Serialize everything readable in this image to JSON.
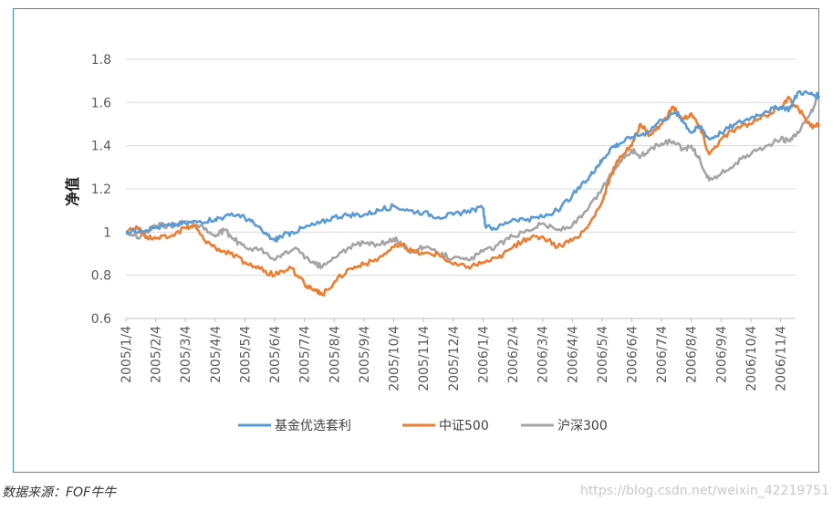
{
  "chart_data": {
    "type": "line",
    "ylabel": "净值",
    "ylim": [
      0.6,
      1.8
    ],
    "yticks": [
      "0.6",
      "0.8",
      "1",
      "1.2",
      "1.4",
      "1.6",
      "1.8"
    ],
    "grid": "horizontal",
    "legend_position": "bottom",
    "x_ticks": [
      "2005/1/4",
      "2005/2/4",
      "2005/3/4",
      "2005/4/4",
      "2005/5/4",
      "2005/6/4",
      "2005/7/4",
      "2005/8/4",
      "2005/9/4",
      "2005/10/4",
      "2005/11/4",
      "2005/12/4",
      "2006/1/4",
      "2006/2/4",
      "2006/3/4",
      "2006/4/4",
      "2006/5/4",
      "2006/6/4",
      "2006/7/4",
      "2006/8/4",
      "2006/9/4",
      "2006/10/4",
      "2006/11/4"
    ],
    "series": [
      {
        "name": "基金优选套利",
        "color": "#5b9bd5",
        "points": [
          [
            0,
            1.0
          ],
          [
            0.5,
            1.01
          ],
          [
            1,
            1.02
          ],
          [
            1.5,
            1.03
          ],
          [
            2,
            1.04
          ],
          [
            2.5,
            1.05
          ],
          [
            3,
            1.06
          ],
          [
            3.3,
            1.07
          ],
          [
            3.8,
            1.08
          ],
          [
            4.2,
            1.05
          ],
          [
            4.6,
            1.0
          ],
          [
            5.0,
            0.96
          ],
          [
            5.2,
            0.98
          ],
          [
            5.6,
            1.0
          ],
          [
            6.0,
            1.02
          ],
          [
            6.5,
            1.04
          ],
          [
            7.0,
            1.07
          ],
          [
            7.5,
            1.08
          ],
          [
            8,
            1.08
          ],
          [
            8.5,
            1.1
          ],
          [
            9,
            1.12
          ],
          [
            9.5,
            1.1
          ],
          [
            10,
            1.09
          ],
          [
            10.5,
            1.07
          ],
          [
            11,
            1.08
          ],
          [
            11.5,
            1.1
          ],
          [
            12,
            1.11
          ],
          [
            12.1,
            1.02
          ],
          [
            12.5,
            1.02
          ],
          [
            13,
            1.06
          ],
          [
            13.5,
            1.06
          ],
          [
            14,
            1.07
          ],
          [
            14.5,
            1.1
          ],
          [
            15,
            1.17
          ],
          [
            15.5,
            1.24
          ],
          [
            15.8,
            1.3
          ],
          [
            16,
            1.33
          ],
          [
            16.3,
            1.39
          ],
          [
            16.6,
            1.41
          ],
          [
            17,
            1.44
          ],
          [
            17.5,
            1.46
          ],
          [
            18,
            1.52
          ],
          [
            18.5,
            1.55
          ],
          [
            18.7,
            1.52
          ],
          [
            19,
            1.46
          ],
          [
            19.3,
            1.49
          ],
          [
            19.6,
            1.43
          ],
          [
            20,
            1.46
          ],
          [
            20.5,
            1.5
          ],
          [
            21,
            1.53
          ],
          [
            21.5,
            1.56
          ],
          [
            22,
            1.58
          ],
          [
            22.3,
            1.57
          ],
          [
            22.6,
            1.65
          ],
          [
            23.0,
            1.64
          ],
          [
            23.3,
            1.63
          ]
        ]
      },
      {
        "name": "中证500",
        "color": "#ed7d31",
        "points": [
          [
            0,
            1.0
          ],
          [
            0.4,
            1.02
          ],
          [
            0.7,
            0.98
          ],
          [
            1,
            0.97
          ],
          [
            1.5,
            0.98
          ],
          [
            2,
            1.02
          ],
          [
            2.3,
            1.03
          ],
          [
            2.6,
            0.97
          ],
          [
            3,
            0.93
          ],
          [
            3.5,
            0.9
          ],
          [
            4,
            0.86
          ],
          [
            4.5,
            0.83
          ],
          [
            5,
            0.8
          ],
          [
            5.5,
            0.84
          ],
          [
            6,
            0.76
          ],
          [
            6.3,
            0.73
          ],
          [
            6.6,
            0.71
          ],
          [
            7,
            0.77
          ],
          [
            7.5,
            0.83
          ],
          [
            8,
            0.85
          ],
          [
            8.5,
            0.88
          ],
          [
            9,
            0.93
          ],
          [
            9.3,
            0.94
          ],
          [
            9.6,
            0.91
          ],
          [
            10,
            0.9
          ],
          [
            10.5,
            0.9
          ],
          [
            11,
            0.85
          ],
          [
            11.5,
            0.84
          ],
          [
            12,
            0.86
          ],
          [
            12.5,
            0.88
          ],
          [
            13,
            0.93
          ],
          [
            13.5,
            0.97
          ],
          [
            14,
            0.98
          ],
          [
            14.5,
            0.93
          ],
          [
            15,
            0.96
          ],
          [
            15.5,
            1.02
          ],
          [
            16,
            1.14
          ],
          [
            16.3,
            1.26
          ],
          [
            16.6,
            1.35
          ],
          [
            17,
            1.4
          ],
          [
            17.3,
            1.5
          ],
          [
            17.6,
            1.45
          ],
          [
            18,
            1.5
          ],
          [
            18.4,
            1.58
          ],
          [
            18.7,
            1.52
          ],
          [
            19,
            1.55
          ],
          [
            19.3,
            1.48
          ],
          [
            19.6,
            1.36
          ],
          [
            20,
            1.43
          ],
          [
            20.5,
            1.48
          ],
          [
            21,
            1.5
          ],
          [
            21.5,
            1.54
          ],
          [
            22,
            1.58
          ],
          [
            22.3,
            1.62
          ],
          [
            22.6,
            1.57
          ],
          [
            23.0,
            1.49
          ],
          [
            23.3,
            1.5
          ]
        ]
      },
      {
        "name": "沪深300",
        "color": "#a5a5a5",
        "points": [
          [
            0,
            0.99
          ],
          [
            0.5,
            0.98
          ],
          [
            1,
            1.03
          ],
          [
            1.5,
            1.03
          ],
          [
            2,
            1.05
          ],
          [
            2.5,
            1.03
          ],
          [
            3,
            0.98
          ],
          [
            3.3,
            1.01
          ],
          [
            3.6,
            0.97
          ],
          [
            4,
            0.93
          ],
          [
            4.5,
            0.92
          ],
          [
            5,
            0.87
          ],
          [
            5.4,
            0.91
          ],
          [
            5.8,
            0.92
          ],
          [
            6.2,
            0.86
          ],
          [
            6.6,
            0.84
          ],
          [
            7,
            0.88
          ],
          [
            7.5,
            0.93
          ],
          [
            8,
            0.95
          ],
          [
            8.5,
            0.94
          ],
          [
            9,
            0.97
          ],
          [
            9.3,
            0.94
          ],
          [
            9.6,
            0.91
          ],
          [
            10,
            0.93
          ],
          [
            10.5,
            0.9
          ],
          [
            11,
            0.88
          ],
          [
            11.5,
            0.87
          ],
          [
            12,
            0.91
          ],
          [
            12.5,
            0.94
          ],
          [
            13,
            0.98
          ],
          [
            13.5,
            1.01
          ],
          [
            14,
            1.04
          ],
          [
            14.5,
            1.01
          ],
          [
            15,
            1.03
          ],
          [
            15.5,
            1.1
          ],
          [
            16,
            1.2
          ],
          [
            16.3,
            1.27
          ],
          [
            16.6,
            1.33
          ],
          [
            17,
            1.38
          ],
          [
            17.3,
            1.35
          ],
          [
            17.6,
            1.38
          ],
          [
            18,
            1.41
          ],
          [
            18.4,
            1.42
          ],
          [
            18.7,
            1.38
          ],
          [
            19,
            1.4
          ],
          [
            19.3,
            1.33
          ],
          [
            19.6,
            1.24
          ],
          [
            20,
            1.27
          ],
          [
            20.5,
            1.32
          ],
          [
            21,
            1.36
          ],
          [
            21.5,
            1.4
          ],
          [
            22,
            1.43
          ],
          [
            22.3,
            1.42
          ],
          [
            22.6,
            1.46
          ],
          [
            23.0,
            1.55
          ],
          [
            23.3,
            1.63
          ]
        ]
      }
    ]
  },
  "footer": {
    "source_note": "数据来源：FOF牛牛",
    "watermark": "https://blog.csdn.net/weixin_42219751"
  }
}
